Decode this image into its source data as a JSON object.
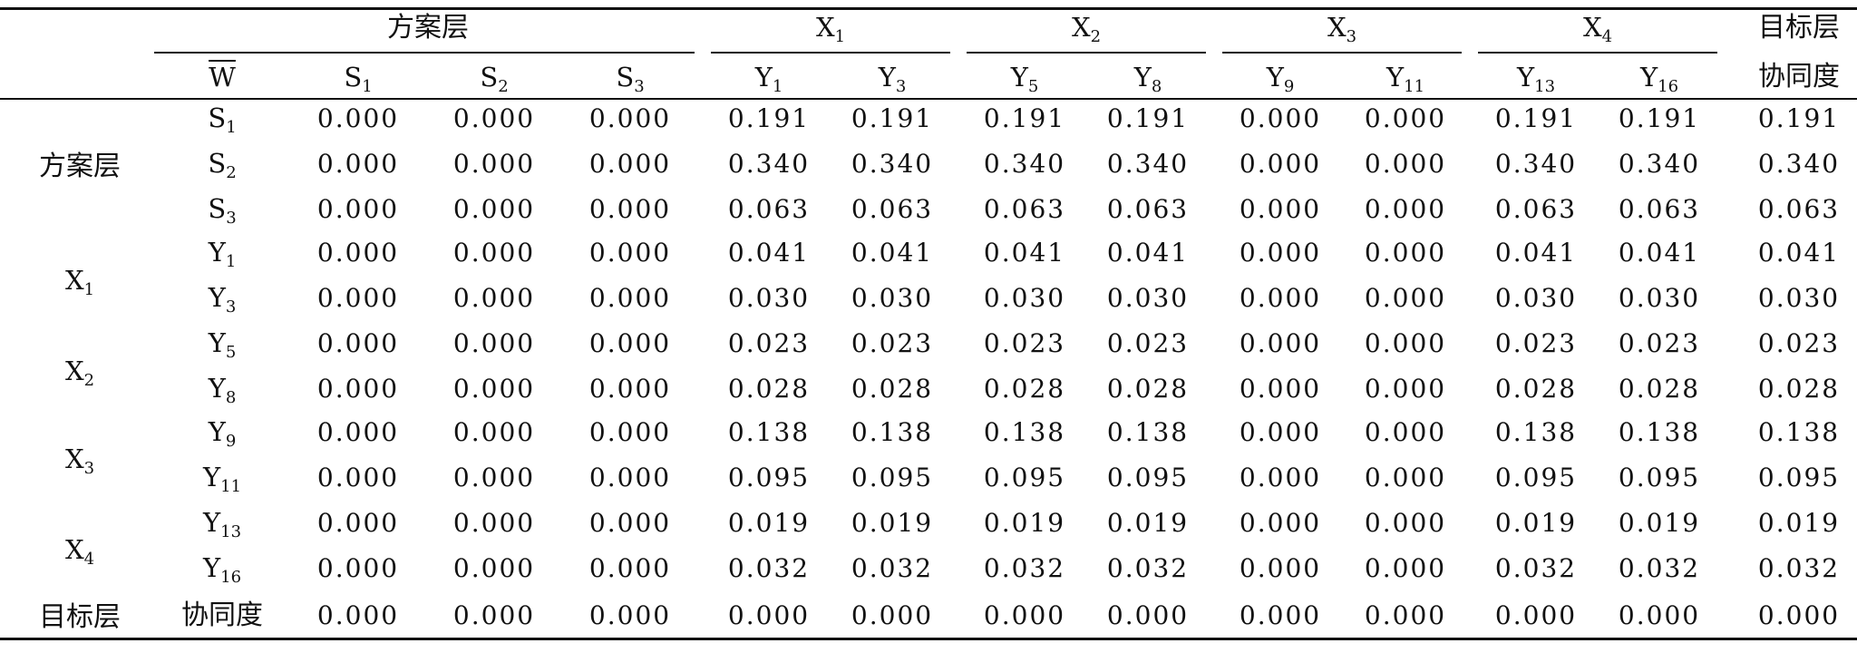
{
  "group_headers": {
    "scheme_layer": "方案层",
    "x1": {
      "base": "X",
      "sub": "1"
    },
    "x2": {
      "base": "X",
      "sub": "2"
    },
    "x3": {
      "base": "X",
      "sub": "3"
    },
    "x4": {
      "base": "X",
      "sub": "4"
    },
    "target_layer": "目标层"
  },
  "col_headers": {
    "w": "W",
    "s1": {
      "base": "S",
      "sub": "1"
    },
    "s2": {
      "base": "S",
      "sub": "2"
    },
    "s3": {
      "base": "S",
      "sub": "3"
    },
    "y1": {
      "base": "Y",
      "sub": "1"
    },
    "y3": {
      "base": "Y",
      "sub": "3"
    },
    "y5": {
      "base": "Y",
      "sub": "5"
    },
    "y8": {
      "base": "Y",
      "sub": "8"
    },
    "y9": {
      "base": "Y",
      "sub": "9"
    },
    "y11": {
      "base": "Y",
      "sub": "11"
    },
    "y13": {
      "base": "Y",
      "sub": "13"
    },
    "y16": {
      "base": "Y",
      "sub": "16"
    },
    "synergy": "协同度"
  },
  "row_groups": {
    "scheme_layer": "方案层",
    "x1": {
      "base": "X",
      "sub": "1"
    },
    "x2": {
      "base": "X",
      "sub": "2"
    },
    "x3": {
      "base": "X",
      "sub": "3"
    },
    "x4": {
      "base": "X",
      "sub": "4"
    },
    "target_layer": "目标层"
  },
  "rows": [
    {
      "label": {
        "base": "S",
        "sub": "1"
      },
      "values": [
        "0.000",
        "0.000",
        "0.000",
        "0.191",
        "0.191",
        "0.191",
        "0.191",
        "0.000",
        "0.000",
        "0.191",
        "0.191",
        "0.191"
      ]
    },
    {
      "label": {
        "base": "S",
        "sub": "2"
      },
      "values": [
        "0.000",
        "0.000",
        "0.000",
        "0.340",
        "0.340",
        "0.340",
        "0.340",
        "0.000",
        "0.000",
        "0.340",
        "0.340",
        "0.340"
      ]
    },
    {
      "label": {
        "base": "S",
        "sub": "3"
      },
      "values": [
        "0.000",
        "0.000",
        "0.000",
        "0.063",
        "0.063",
        "0.063",
        "0.063",
        "0.000",
        "0.000",
        "0.063",
        "0.063",
        "0.063"
      ]
    },
    {
      "label": {
        "base": "Y",
        "sub": "1"
      },
      "values": [
        "0.000",
        "0.000",
        "0.000",
        "0.041",
        "0.041",
        "0.041",
        "0.041",
        "0.000",
        "0.000",
        "0.041",
        "0.041",
        "0.041"
      ]
    },
    {
      "label": {
        "base": "Y",
        "sub": "3"
      },
      "values": [
        "0.000",
        "0.000",
        "0.000",
        "0.030",
        "0.030",
        "0.030",
        "0.030",
        "0.000",
        "0.000",
        "0.030",
        "0.030",
        "0.030"
      ]
    },
    {
      "label": {
        "base": "Y",
        "sub": "5"
      },
      "values": [
        "0.000",
        "0.000",
        "0.000",
        "0.023",
        "0.023",
        "0.023",
        "0.023",
        "0.000",
        "0.000",
        "0.023",
        "0.023",
        "0.023"
      ]
    },
    {
      "label": {
        "base": "Y",
        "sub": "8"
      },
      "values": [
        "0.000",
        "0.000",
        "0.000",
        "0.028",
        "0.028",
        "0.028",
        "0.028",
        "0.000",
        "0.000",
        "0.028",
        "0.028",
        "0.028"
      ]
    },
    {
      "label": {
        "base": "Y",
        "sub": "9"
      },
      "values": [
        "0.000",
        "0.000",
        "0.000",
        "0.138",
        "0.138",
        "0.138",
        "0.138",
        "0.000",
        "0.000",
        "0.138",
        "0.138",
        "0.138"
      ]
    },
    {
      "label": {
        "base": "Y",
        "sub": "11"
      },
      "values": [
        "0.000",
        "0.000",
        "0.000",
        "0.095",
        "0.095",
        "0.095",
        "0.095",
        "0.000",
        "0.000",
        "0.095",
        "0.095",
        "0.095"
      ]
    },
    {
      "label": {
        "base": "Y",
        "sub": "13"
      },
      "values": [
        "0.000",
        "0.000",
        "0.000",
        "0.019",
        "0.019",
        "0.019",
        "0.019",
        "0.000",
        "0.000",
        "0.019",
        "0.019",
        "0.019"
      ]
    },
    {
      "label": {
        "base": "Y",
        "sub": "16"
      },
      "values": [
        "0.000",
        "0.000",
        "0.000",
        "0.032",
        "0.032",
        "0.032",
        "0.032",
        "0.000",
        "0.000",
        "0.032",
        "0.032",
        "0.032"
      ]
    },
    {
      "label": {
        "text": "协同度"
      },
      "values": [
        "0.000",
        "0.000",
        "0.000",
        "0.000",
        "0.000",
        "0.000",
        "0.000",
        "0.000",
        "0.000",
        "0.000",
        "0.000",
        "0.000"
      ]
    }
  ]
}
